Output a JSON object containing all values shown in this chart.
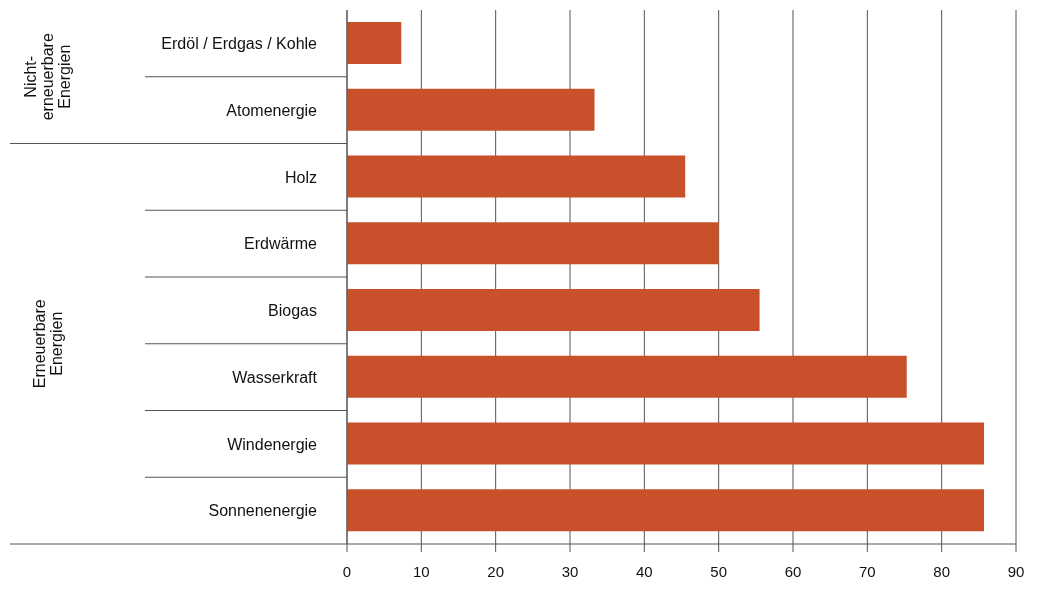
{
  "chart_data": {
    "type": "bar",
    "orientation": "horizontal",
    "categories": [
      "Erdöl / Erdgas / Kohle",
      "Atomenergie",
      "Holz",
      "Erdwärme",
      "Biogas",
      "Wasserkraft",
      "Windenergie",
      "Sonnenenergie"
    ],
    "values": [
      7.3,
      33.3,
      45.5,
      50,
      55.5,
      75.3,
      85.7,
      85.7
    ],
    "color": "#c8502a",
    "xlim": [
      0,
      90
    ],
    "xticks": [
      0,
      10,
      20,
      30,
      40,
      50,
      60,
      70,
      80,
      90
    ],
    "grid": "x",
    "annotations": [
      "Nicht-erneuerbare Energien",
      "Erneuerbare Energien"
    ]
  }
}
